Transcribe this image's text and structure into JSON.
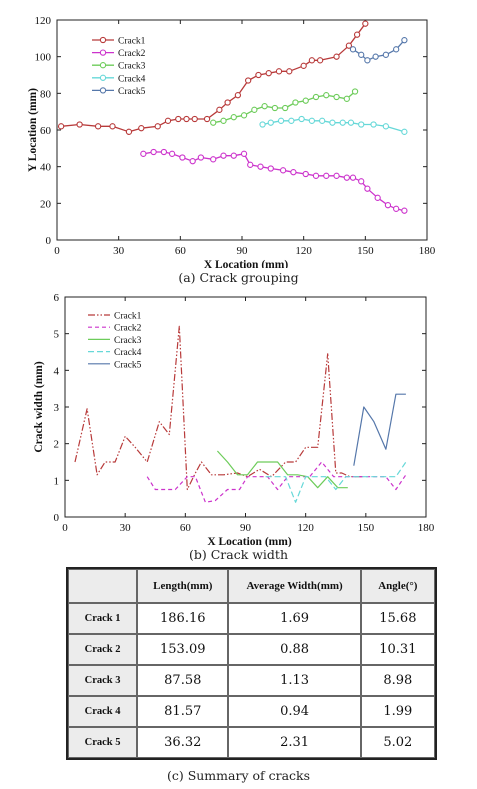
{
  "chart_data": [
    {
      "type": "line",
      "xlabel": "X Location (mm)",
      "ylabel": "Y Location (mm)",
      "xlim": [
        0,
        180
      ],
      "ylim": [
        0,
        120
      ],
      "xticks": [
        0,
        30,
        60,
        90,
        120,
        150,
        180
      ],
      "yticks": [
        0,
        20,
        40,
        60,
        80,
        100,
        120
      ],
      "grid": false,
      "legend": "top-left",
      "series": [
        {
          "name": "Crack1",
          "color": "#b83a3a",
          "x": [
            2,
            11,
            20,
            27,
            35,
            41,
            49,
            54,
            59,
            63,
            67,
            73,
            79,
            83,
            88,
            93,
            98,
            103,
            108,
            113,
            120,
            124,
            128,
            136,
            142,
            146,
            150
          ],
          "y": [
            62,
            63,
            62,
            62,
            59,
            61,
            62,
            65,
            66,
            66,
            66,
            66,
            71,
            75,
            79,
            87,
            90,
            91,
            92,
            92,
            95,
            98,
            98,
            100,
            106,
            112,
            118
          ]
        },
        {
          "name": "Crack2",
          "color": "#cc33cc",
          "x": [
            42,
            47,
            52,
            56,
            61,
            66,
            70,
            76,
            81,
            86,
            91,
            94,
            99,
            104,
            110,
            115,
            121,
            126,
            131,
            136,
            141,
            144,
            148,
            151,
            156,
            161,
            165,
            169
          ],
          "y": [
            47,
            48,
            48,
            47,
            45,
            43,
            45,
            44,
            46,
            46,
            47,
            41,
            40,
            39,
            38,
            37,
            36,
            35,
            35,
            35,
            34,
            34,
            32,
            28,
            23,
            19,
            17,
            16
          ]
        },
        {
          "name": "Crack3",
          "color": "#6dcc5a",
          "x": [
            76,
            81,
            86,
            91,
            96,
            101,
            106,
            111,
            116,
            121,
            126,
            131,
            136,
            141,
            145
          ],
          "y": [
            64,
            65,
            67,
            68,
            71,
            73,
            72,
            72,
            75,
            76,
            78,
            79,
            78,
            77,
            81
          ]
        },
        {
          "name": "Crack4",
          "color": "#66d8d8",
          "x": [
            100,
            104,
            109,
            114,
            119,
            124,
            129,
            134,
            139,
            143,
            148,
            154,
            160,
            169
          ],
          "y": [
            63,
            64,
            65,
            65,
            66,
            65,
            65,
            64,
            64,
            64,
            63,
            63,
            62,
            59
          ]
        },
        {
          "name": "Crack5",
          "color": "#5577aa",
          "x": [
            144,
            148,
            151,
            155,
            160,
            165,
            169
          ],
          "y": [
            104,
            101,
            98,
            100,
            101,
            104,
            109
          ]
        }
      ]
    },
    {
      "type": "line",
      "xlabel": "X Location (mm)",
      "ylabel": "Crack width (mm)",
      "xlim": [
        0,
        180
      ],
      "ylim": [
        0,
        6
      ],
      "xticks": [
        0,
        30,
        60,
        90,
        120,
        150,
        180
      ],
      "yticks": [
        0,
        1,
        2,
        3,
        4,
        5,
        6
      ],
      "grid": false,
      "legend": "top-left",
      "series": [
        {
          "name": "Crack1",
          "color": "#b83a3a",
          "dash": "7,2,1.5,2,1.5,2",
          "x": [
            5,
            11,
            16,
            20,
            25,
            30,
            35,
            41,
            47,
            52,
            57,
            61,
            65,
            68,
            73,
            79,
            86,
            91,
            97,
            103,
            110,
            115,
            120,
            126,
            131,
            135,
            138,
            142,
            145,
            149
          ],
          "y": [
            1.5,
            2.95,
            1.15,
            1.5,
            1.5,
            2.2,
            1.9,
            1.5,
            2.6,
            2.25,
            5.2,
            0.75,
            1.2,
            1.5,
            1.15,
            1.15,
            1.2,
            1.1,
            1.3,
            1.1,
            1.5,
            1.5,
            1.9,
            1.9,
            4.45,
            1.2,
            1.2,
            1.1,
            1.1,
            1.1
          ]
        },
        {
          "name": "Crack2",
          "color": "#cc33cc",
          "dash": "4,3",
          "x": [
            41,
            45,
            51,
            55,
            61,
            65,
            70,
            75,
            81,
            87,
            91,
            96,
            101,
            106,
            111,
            117,
            122,
            128,
            134,
            139,
            145,
            150,
            155,
            160,
            165,
            170
          ],
          "y": [
            1.1,
            0.75,
            0.75,
            0.75,
            1.1,
            1.1,
            0.4,
            0.45,
            0.75,
            0.75,
            1.1,
            1.1,
            1.1,
            0.75,
            1.1,
            1.1,
            1.1,
            1.5,
            1.1,
            1.1,
            1.1,
            1.1,
            1.1,
            1.1,
            0.75,
            1.15
          ]
        },
        {
          "name": "Crack3",
          "color": "#6dcc5a",
          "dash": "",
          "x": [
            76,
            81,
            86,
            91,
            96,
            101,
            106,
            111,
            116,
            121,
            126,
            131,
            136,
            141
          ],
          "y": [
            1.8,
            1.5,
            1.15,
            1.15,
            1.5,
            1.5,
            1.5,
            1.15,
            1.15,
            1.1,
            0.8,
            1.1,
            0.8,
            0.8
          ]
        },
        {
          "name": "Crack4",
          "color": "#66d8d8",
          "dash": "6,3",
          "x": [
            100,
            105,
            110,
            115,
            120,
            125,
            130,
            135,
            140,
            145,
            150,
            155,
            160,
            165,
            170
          ],
          "y": [
            1.1,
            1.1,
            1.1,
            0.4,
            1.1,
            1.1,
            1.1,
            0.75,
            1.1,
            1.1,
            1.1,
            1.1,
            1.1,
            1.1,
            1.5
          ]
        },
        {
          "name": "Crack5",
          "color": "#5577aa",
          "dash": "",
          "x": [
            144,
            149,
            154,
            160,
            165,
            170
          ],
          "y": [
            1.4,
            3.0,
            2.6,
            1.85,
            3.35,
            3.35
          ]
        }
      ]
    },
    {
      "type": "table",
      "columns": [
        "",
        "Length(mm)",
        "Average Width(mm)",
        "Angle(°)"
      ],
      "rows": [
        {
          "label": "Crack 1",
          "length": "186.16",
          "width": "1.69",
          "angle": "15.68"
        },
        {
          "label": "Crack 2",
          "length": "153.09",
          "width": "0.88",
          "angle": "10.31"
        },
        {
          "label": "Crack 3",
          "length": "87.58",
          "width": "1.13",
          "angle": "8.98"
        },
        {
          "label": "Crack 4",
          "length": "81.57",
          "width": "0.94",
          "angle": "1.99"
        },
        {
          "label": "Crack 5",
          "length": "36.32",
          "width": "2.31",
          "angle": "5.02"
        }
      ]
    }
  ],
  "captions": {
    "a": "(a)  Crack grouping",
    "b": "(b)  Crack width",
    "c": "(c)  Summary of cracks"
  }
}
